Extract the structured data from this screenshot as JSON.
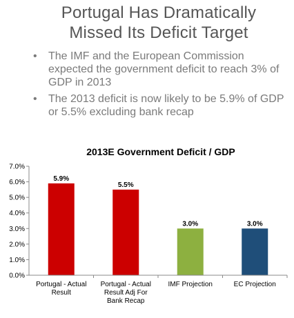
{
  "slide": {
    "title_line1": "Portugal Has Dramatically",
    "title_line2": "Missed Its Deficit Target",
    "bullets": [
      "The IMF and the European Commission expected the government deficit to reach 3% of GDP in 2013",
      "The 2013 deficit is now likely to be 5.9% of GDP or 5.5% excluding bank recap"
    ],
    "bullet_glyph": "•"
  },
  "chart_data": {
    "type": "bar",
    "title": "2013E Government Deficit / GDP",
    "xlabel": "",
    "ylabel": "",
    "categories": [
      [
        "Portugal - Actual",
        "Result"
      ],
      [
        "Portugal - Actual",
        "Result Adj For",
        "Bank Recap"
      ],
      [
        "IMF Projection"
      ],
      [
        "EC Projection"
      ]
    ],
    "values": [
      5.9,
      5.5,
      3.0,
      3.0
    ],
    "data_labels": [
      "5.9%",
      "5.5%",
      "3.0%",
      "3.0%"
    ],
    "colors": [
      "#cc0000",
      "#cc0000",
      "#8db040",
      "#1f4e79"
    ],
    "ylim": [
      0,
      7
    ],
    "yticks": [
      0,
      1,
      2,
      3,
      4,
      5,
      6,
      7
    ],
    "ytick_labels": [
      "0.0%",
      "1.0%",
      "2.0%",
      "3.0%",
      "4.0%",
      "5.0%",
      "6.0%",
      "7.0%"
    ],
    "grid": false,
    "legend": "none"
  }
}
